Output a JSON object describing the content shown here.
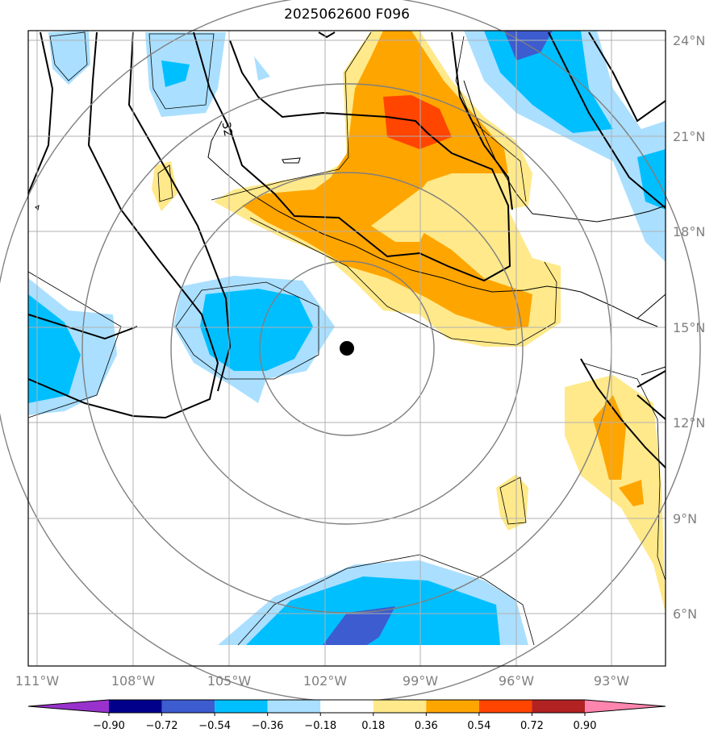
{
  "title": "2025062600 F096",
  "lat_labels": [
    "24°N",
    "21°N",
    "18°N",
    "15°N",
    "12°N",
    "9°N",
    "6°N"
  ],
  "lon_labels": [
    "111°W",
    "108°W",
    "105°W",
    "102°W",
    "99°W",
    "96°W",
    "93°W"
  ],
  "contour_label": "32",
  "colorbar": {
    "levels": [
      "−0.90",
      "−0.72",
      "−0.54",
      "−0.36",
      "−0.18",
      "0.18",
      "0.36",
      "0.54",
      "0.72",
      "0.90"
    ],
    "colors": [
      "#9932cc",
      "#00008b",
      "#3c5ccf",
      "#00bfff",
      "#aadfff",
      "#ffffff",
      "#ffe98a",
      "#ffa500",
      "#ff4500",
      "#b22222",
      "#ff85ae"
    ]
  },
  "storm_center": {
    "lon": -101.3,
    "lat": 14.3
  }
}
